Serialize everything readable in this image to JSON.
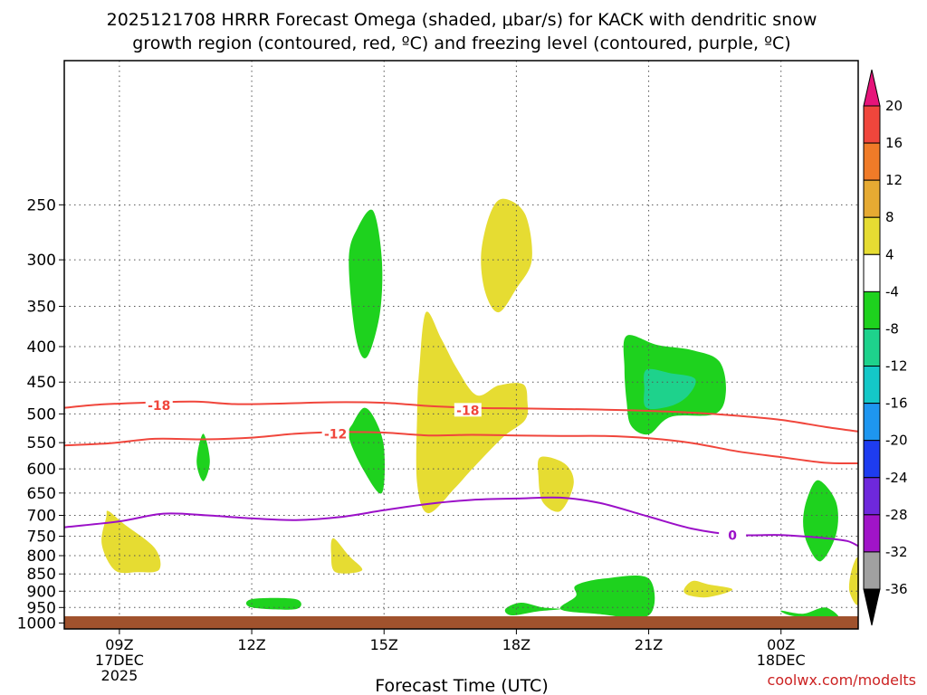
{
  "chart_data": {
    "type": "heatmap",
    "title_lines": [
      "2025121708 HRRR Forecast Omega (shaded, μbar/s) for KACK with dendritic snow",
      "growth region (contoured, red, ºC) and freezing level (contoured, purple, ºC)"
    ],
    "xlabel": "Forecast Time (UTC)",
    "credit": "coolwx.com/modelts",
    "time_axis": {
      "start_hour": 7.75,
      "end_hour": 25.75,
      "ticks": [
        {
          "hour": 9,
          "lines": [
            "09Z",
            "17DEC",
            "2025"
          ]
        },
        {
          "hour": 12,
          "lines": [
            "12Z"
          ]
        },
        {
          "hour": 15,
          "lines": [
            "15Z"
          ]
        },
        {
          "hour": 18,
          "lines": [
            "18Z"
          ]
        },
        {
          "hour": 21,
          "lines": [
            "21Z"
          ]
        },
        {
          "hour": 24,
          "lines": [
            "00Z",
            "18DEC"
          ]
        }
      ]
    },
    "pressure_axis": {
      "top_hpa": 155,
      "bottom_hpa": 1020,
      "scale": "log",
      "reversed": true,
      "ticks": [
        250,
        300,
        350,
        400,
        450,
        500,
        550,
        600,
        650,
        700,
        750,
        800,
        850,
        900,
        950,
        1000
      ]
    },
    "grid": true,
    "colorbar": {
      "ticks": [
        20,
        16,
        12,
        8,
        4,
        -4,
        -8,
        -12,
        -16,
        -20,
        -24,
        -28,
        -32,
        -36
      ],
      "bins": [
        {
          "from": 16,
          "to": 20,
          "color": "#f0463c"
        },
        {
          "from": 12,
          "to": 16,
          "color": "#f07b28"
        },
        {
          "from": 8,
          "to": 12,
          "color": "#e6aa32"
        },
        {
          "from": 4,
          "to": 8,
          "color": "#e6dc32"
        },
        {
          "from": -4,
          "to": 4,
          "color": "#ffffff"
        },
        {
          "from": -8,
          "to": -4,
          "color": "#1ed21e"
        },
        {
          "from": -12,
          "to": -8,
          "color": "#1ed28c"
        },
        {
          "from": -16,
          "to": -12,
          "color": "#14c8c8"
        },
        {
          "from": -20,
          "to": -16,
          "color": "#1e96f0"
        },
        {
          "from": -24,
          "to": -20,
          "color": "#1e3cf0"
        },
        {
          "from": -28,
          "to": -24,
          "color": "#6e28dc"
        },
        {
          "from": -32,
          "to": -28,
          "color": "#a014c8"
        },
        {
          "from": -36,
          "to": -32,
          "color": "#a0a0a0"
        }
      ],
      "over_color": "#e6147a",
      "under_color": "#000000"
    },
    "contours": [
      {
        "label": "-18",
        "color": "#f0463c",
        "label_at": {
          "hour": 9.9,
          "hpa": 486
        },
        "label_at_2": {
          "hour": 16.9,
          "hpa": 494
        },
        "points": [
          [
            7.75,
            490
          ],
          [
            8.5,
            485
          ],
          [
            9.5,
            482
          ],
          [
            10.7,
            480
          ],
          [
            11.6,
            484
          ],
          [
            12.8,
            483
          ],
          [
            13.8,
            481
          ],
          [
            15,
            482
          ],
          [
            16,
            487
          ],
          [
            17,
            490
          ],
          [
            18,
            491
          ],
          [
            19,
            492
          ],
          [
            20,
            493
          ],
          [
            21,
            495
          ],
          [
            22,
            498
          ],
          [
            23,
            503
          ],
          [
            24,
            510
          ],
          [
            25,
            522
          ],
          [
            25.75,
            530
          ]
        ]
      },
      {
        "label": "-12",
        "color": "#f0463c",
        "label_at": {
          "hour": 13.9,
          "hpa": 534
        },
        "points": [
          [
            7.75,
            555
          ],
          [
            8.8,
            551
          ],
          [
            9.8,
            543
          ],
          [
            10.9,
            544
          ],
          [
            12,
            541
          ],
          [
            13,
            534
          ],
          [
            14,
            531
          ],
          [
            15,
            532
          ],
          [
            16,
            537
          ],
          [
            17,
            536
          ],
          [
            18,
            537
          ],
          [
            19,
            538
          ],
          [
            20,
            538
          ],
          [
            21,
            542
          ],
          [
            22,
            551
          ],
          [
            23,
            566
          ],
          [
            24,
            577
          ],
          [
            25,
            588
          ],
          [
            25.75,
            589
          ]
        ]
      },
      {
        "label": "0",
        "color": "#9b10c8",
        "label_at": {
          "hour": 22.9,
          "hpa": 748
        },
        "points": [
          [
            7.75,
            728
          ],
          [
            9,
            714
          ],
          [
            10,
            696
          ],
          [
            11,
            700
          ],
          [
            12,
            707
          ],
          [
            13,
            711
          ],
          [
            14,
            704
          ],
          [
            15,
            688
          ],
          [
            16,
            674
          ],
          [
            17,
            665
          ],
          [
            18,
            662
          ],
          [
            19,
            660
          ],
          [
            19.9,
            672
          ],
          [
            21,
            703
          ],
          [
            22,
            732
          ],
          [
            23,
            747
          ],
          [
            24,
            747
          ],
          [
            25,
            755
          ],
          [
            25.5,
            762
          ],
          [
            25.75,
            775
          ]
        ]
      }
    ],
    "omega_regions": [
      {
        "value": 6,
        "points": [
          [
            17.7,
            245
          ],
          [
            18.2,
            258
          ],
          [
            18.35,
            300
          ],
          [
            18.0,
            330
          ],
          [
            17.6,
            357
          ],
          [
            17.3,
            335
          ],
          [
            17.2,
            295
          ],
          [
            17.4,
            258
          ]
        ]
      },
      {
        "value": -6,
        "points": [
          [
            14.75,
            255
          ],
          [
            14.95,
            300
          ],
          [
            14.9,
            360
          ],
          [
            14.6,
            415
          ],
          [
            14.35,
            385
          ],
          [
            14.2,
            300
          ],
          [
            14.4,
            270
          ]
        ]
      },
      {
        "value": 6,
        "points": [
          [
            15.95,
            357
          ],
          [
            16.3,
            390
          ],
          [
            16.65,
            430
          ],
          [
            17.1,
            470
          ],
          [
            17.6,
            455
          ],
          [
            18.15,
            453
          ],
          [
            18.25,
            480
          ],
          [
            18.2,
            510
          ],
          [
            17.7,
            540
          ],
          [
            17.0,
            600
          ],
          [
            16.6,
            640
          ],
          [
            16.0,
            695
          ],
          [
            15.75,
            630
          ],
          [
            15.75,
            500
          ],
          [
            15.8,
            430
          ]
        ]
      },
      {
        "value": -6,
        "points": [
          [
            20.5,
            386
          ],
          [
            21.2,
            398
          ],
          [
            22.0,
            405
          ],
          [
            22.6,
            420
          ],
          [
            22.75,
            465
          ],
          [
            22.5,
            500
          ],
          [
            21.5,
            505
          ],
          [
            21.0,
            535
          ],
          [
            20.6,
            520
          ],
          [
            20.5,
            480
          ],
          [
            20.45,
            430
          ]
        ]
      },
      {
        "value": -10,
        "points": [
          [
            20.95,
            432
          ],
          [
            21.5,
            437
          ],
          [
            22.05,
            445
          ],
          [
            21.9,
            470
          ],
          [
            21.5,
            487
          ],
          [
            20.95,
            490
          ],
          [
            20.9,
            460
          ]
        ]
      },
      {
        "value": -6,
        "points": [
          [
            14.55,
            490
          ],
          [
            14.8,
            510
          ],
          [
            15.0,
            560
          ],
          [
            14.95,
            650
          ],
          [
            14.55,
            605
          ],
          [
            14.2,
            540
          ],
          [
            14.3,
            515
          ]
        ]
      },
      {
        "value": 6,
        "points": [
          [
            18.55,
            577
          ],
          [
            19.1,
            590
          ],
          [
            19.3,
            630
          ],
          [
            19.0,
            690
          ],
          [
            18.6,
            670
          ],
          [
            18.5,
            615
          ]
        ]
      },
      {
        "value": -6,
        "points": [
          [
            10.9,
            534
          ],
          [
            11.05,
            585
          ],
          [
            10.9,
            625
          ],
          [
            10.75,
            585
          ]
        ]
      },
      {
        "value": 6,
        "points": [
          [
            8.75,
            690
          ],
          [
            9.1,
            720
          ],
          [
            9.8,
            780
          ],
          [
            9.9,
            838
          ],
          [
            9.4,
            845
          ],
          [
            8.9,
            840
          ],
          [
            8.6,
            770
          ],
          [
            8.7,
            705
          ]
        ]
      },
      {
        "value": 6,
        "points": [
          [
            13.85,
            755
          ],
          [
            14.2,
            800
          ],
          [
            14.5,
            840
          ],
          [
            13.9,
            845
          ],
          [
            13.8,
            795
          ]
        ]
      },
      {
        "value": -6,
        "points": [
          [
            24.85,
            623
          ],
          [
            25.25,
            670
          ],
          [
            25.25,
            745
          ],
          [
            24.9,
            815
          ],
          [
            24.6,
            770
          ],
          [
            24.5,
            715
          ],
          [
            24.6,
            660
          ]
        ]
      },
      {
        "value": 6,
        "points": [
          [
            25.75,
            808
          ],
          [
            25.6,
            840
          ],
          [
            25.55,
            900
          ],
          [
            25.75,
            938
          ]
        ]
      },
      {
        "value": 6,
        "points": [
          [
            22.0,
            870
          ],
          [
            22.35,
            880
          ],
          [
            22.9,
            895
          ],
          [
            22.35,
            918
          ],
          [
            21.9,
            912
          ],
          [
            21.8,
            895
          ]
        ]
      },
      {
        "value": -6,
        "points": [
          [
            19.35,
            883
          ],
          [
            20.0,
            863
          ],
          [
            21.0,
            863
          ],
          [
            21.0,
            975
          ],
          [
            19.8,
            970
          ],
          [
            19.0,
            955
          ],
          [
            19.35,
            915
          ]
        ]
      },
      {
        "value": -6,
        "points": [
          [
            17.75,
            955
          ],
          [
            18.1,
            935
          ],
          [
            18.6,
            950
          ],
          [
            19.0,
            955
          ],
          [
            18.5,
            962
          ],
          [
            17.9,
            975
          ]
        ]
      },
      {
        "value": -6,
        "points": [
          [
            12.0,
            924
          ],
          [
            13.0,
            924
          ],
          [
            13.0,
            955
          ],
          [
            12.0,
            950
          ]
        ]
      },
      {
        "value": -6,
        "points": [
          [
            24.0,
            960
          ],
          [
            24.5,
            970
          ],
          [
            25.0,
            950
          ],
          [
            25.3,
            985
          ],
          [
            24.6,
            982
          ],
          [
            24.2,
            975
          ]
        ]
      }
    ]
  }
}
